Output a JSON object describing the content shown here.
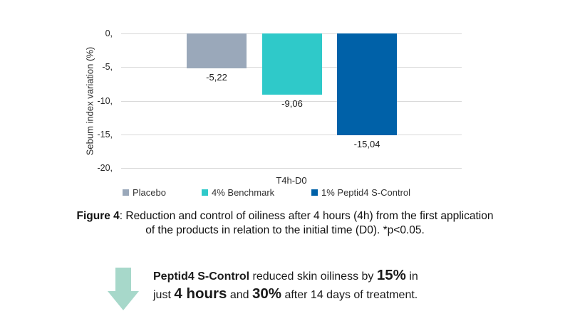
{
  "chart_data": {
    "type": "bar",
    "orientation": "vertical",
    "title": "",
    "categories": [
      "T4h-D0"
    ],
    "series": [
      {
        "name": "Placebo",
        "value": -5.22,
        "label": "-5,22",
        "color": "#9aa8ba"
      },
      {
        "name": "4% Benchmark",
        "value": -9.06,
        "label": "-9,06",
        "color": "#2fc9c9"
      },
      {
        "name": "1% Peptid4 S-Control",
        "value": -15.04,
        "label": "-15,04",
        "color": "#0061a8"
      }
    ],
    "xlabel": "T4h-D0",
    "ylabel": "Sebum index variation (%)",
    "ylim": [
      -20,
      0
    ],
    "ytick_labels": [
      "0,",
      "-5,",
      "-10,",
      "-15,",
      "-20,"
    ],
    "grid": true,
    "gridline_color": "#d9d9d9",
    "legend_position": "bottom"
  },
  "caption": {
    "label": "Figure 4",
    "line1_rest": ": Reduction and control of oiliness after 4 hours (4h) from the first application",
    "line2": "of the products in relation to the initial time (D0). *p<0.05."
  },
  "callout": {
    "arrow_icon": "down-arrow-icon",
    "arrow_color": "#a7d8ca",
    "bold1": "Peptid4 S-Control",
    "text1": " reduced skin oiliness by ",
    "big1": "15%",
    "text2": " in",
    "text3": "just ",
    "big2": "4 hours",
    "text4": " and ",
    "big3": "30%",
    "text5": " after 14 days of treatment."
  }
}
